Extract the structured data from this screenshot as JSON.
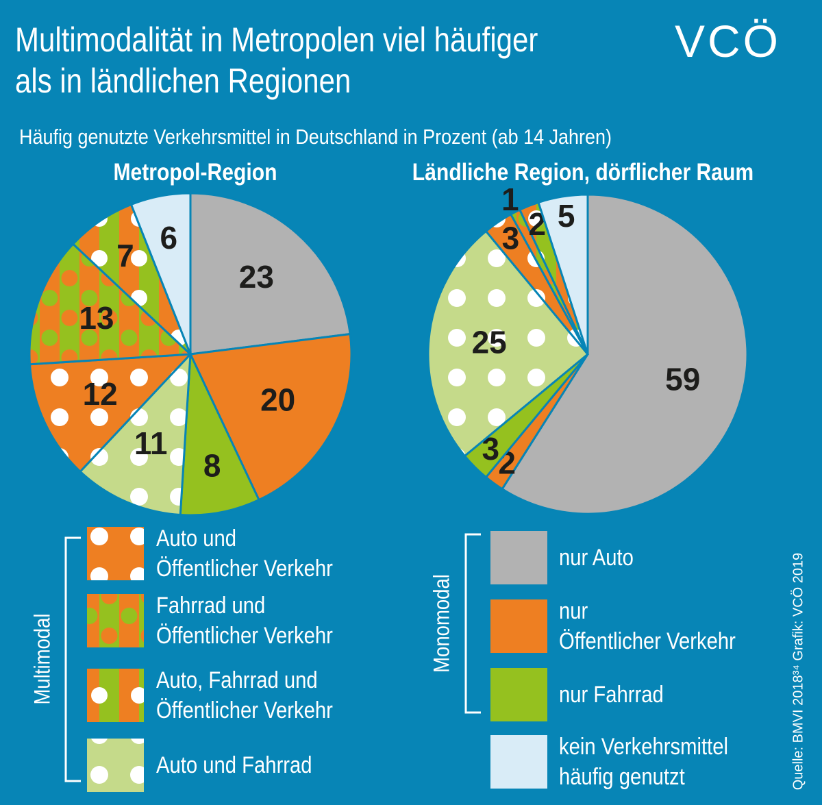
{
  "title": "Multimodalität in Metropolen viel häufiger\nals in ländlichen Regionen",
  "subtitle": "Häufig genutzte Verkehrsmittel in Deutschland in Prozent (ab 14 Jahren)",
  "logo": "VCÖ",
  "source": "Quelle: BMVI 2018³⁴ Grafik: VCÖ 2019",
  "legend": {
    "groups": [
      {
        "label": "Multimodal",
        "items": [
          {
            "name": "Auto und\nÖffentlicher Verkehr",
            "fill": "url(#orange-dots)"
          },
          {
            "name": "Fahrrad und\nÖffentlicher Verkehr",
            "fill": "url(#stripes-color-dots)"
          },
          {
            "name": "Auto, Fahrrad und\nÖffentlicher Verkehr",
            "fill": "url(#stripes-white-dots)"
          },
          {
            "name": "Auto und Fahrrad",
            "fill": "url(#lightgreen-dots)"
          }
        ]
      },
      {
        "label": "Monomodal",
        "items": [
          {
            "name": "nur Auto",
            "fill": "#b2b2b2"
          },
          {
            "name": "nur\nÖffentlicher Verkehr",
            "fill": "#ee7f22"
          },
          {
            "name": "nur Fahrrad",
            "fill": "#95c11f"
          }
        ]
      }
    ],
    "other": {
      "name": "kein Verkehrsmittel\nhäufig genutzt",
      "fill": "#d9ecf7"
    }
  },
  "chart_data": [
    {
      "type": "pie",
      "title": "Metropol-Region",
      "values": [
        23,
        20,
        8,
        11,
        12,
        13,
        7,
        6
      ],
      "colors": [
        "#b2b2b2",
        "#ee7f22",
        "#95c11f",
        "url(#lightgreen-dots)",
        "url(#orange-dots)",
        "url(#stripes-color-dots)",
        "url(#stripes-white-dots)",
        "#d9ecf7"
      ]
    },
    {
      "type": "pie",
      "title": "Ländliche Region, dörflicher Raum",
      "values": [
        59,
        2,
        3,
        25,
        3,
        1,
        2,
        5
      ],
      "colors": [
        "#b2b2b2",
        "#ee7f22",
        "#95c11f",
        "url(#lightgreen-dots)",
        "url(#orange-dots)",
        "url(#stripes-color-dots)",
        "url(#stripes-white-dots)",
        "#d9ecf7"
      ]
    }
  ]
}
